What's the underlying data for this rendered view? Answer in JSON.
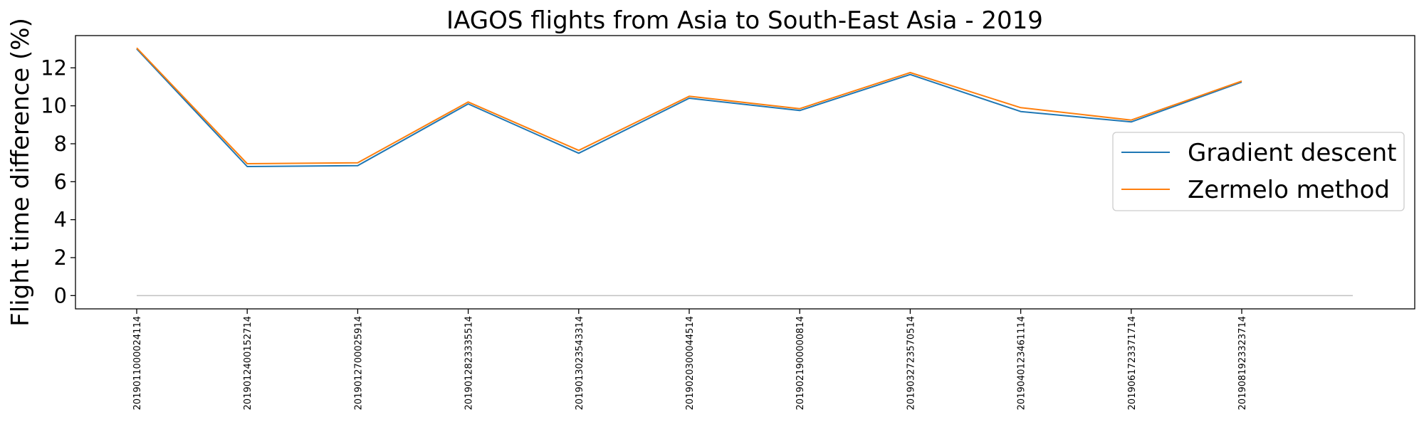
{
  "chart_data": {
    "type": "line",
    "title": "IAGOS flights from Asia to South-East Asia - 2019",
    "xlabel": "",
    "ylabel": "Flight time difference (%)",
    "categories": [
      "2019011000024114",
      "2019012400152714",
      "2019012700025914",
      "2019012823335514",
      "2019013023543314",
      "2019020300044514",
      "2019021900000814",
      "2019032723570514",
      "2019040123461114",
      "2019061723371714",
      "2019081923323714"
    ],
    "series": [
      {
        "name": "Gradient descent",
        "color": "#1f77b4",
        "values": [
          13.0,
          6.8,
          6.85,
          10.1,
          7.5,
          10.4,
          9.75,
          11.65,
          9.7,
          9.15,
          11.25
        ]
      },
      {
        "name": "Zermelo method",
        "color": "#ff7f0e",
        "values": [
          13.05,
          6.95,
          7.0,
          10.2,
          7.65,
          10.5,
          9.85,
          11.75,
          9.9,
          9.25,
          11.3
        ]
      }
    ],
    "baseline": {
      "y": 0,
      "color": "#c0c0c0"
    },
    "yticks": [
      0,
      2,
      4,
      6,
      8,
      10,
      12
    ],
    "ylim": [
      -0.7,
      13.7
    ],
    "grid": false,
    "legend_position": "center-right"
  }
}
